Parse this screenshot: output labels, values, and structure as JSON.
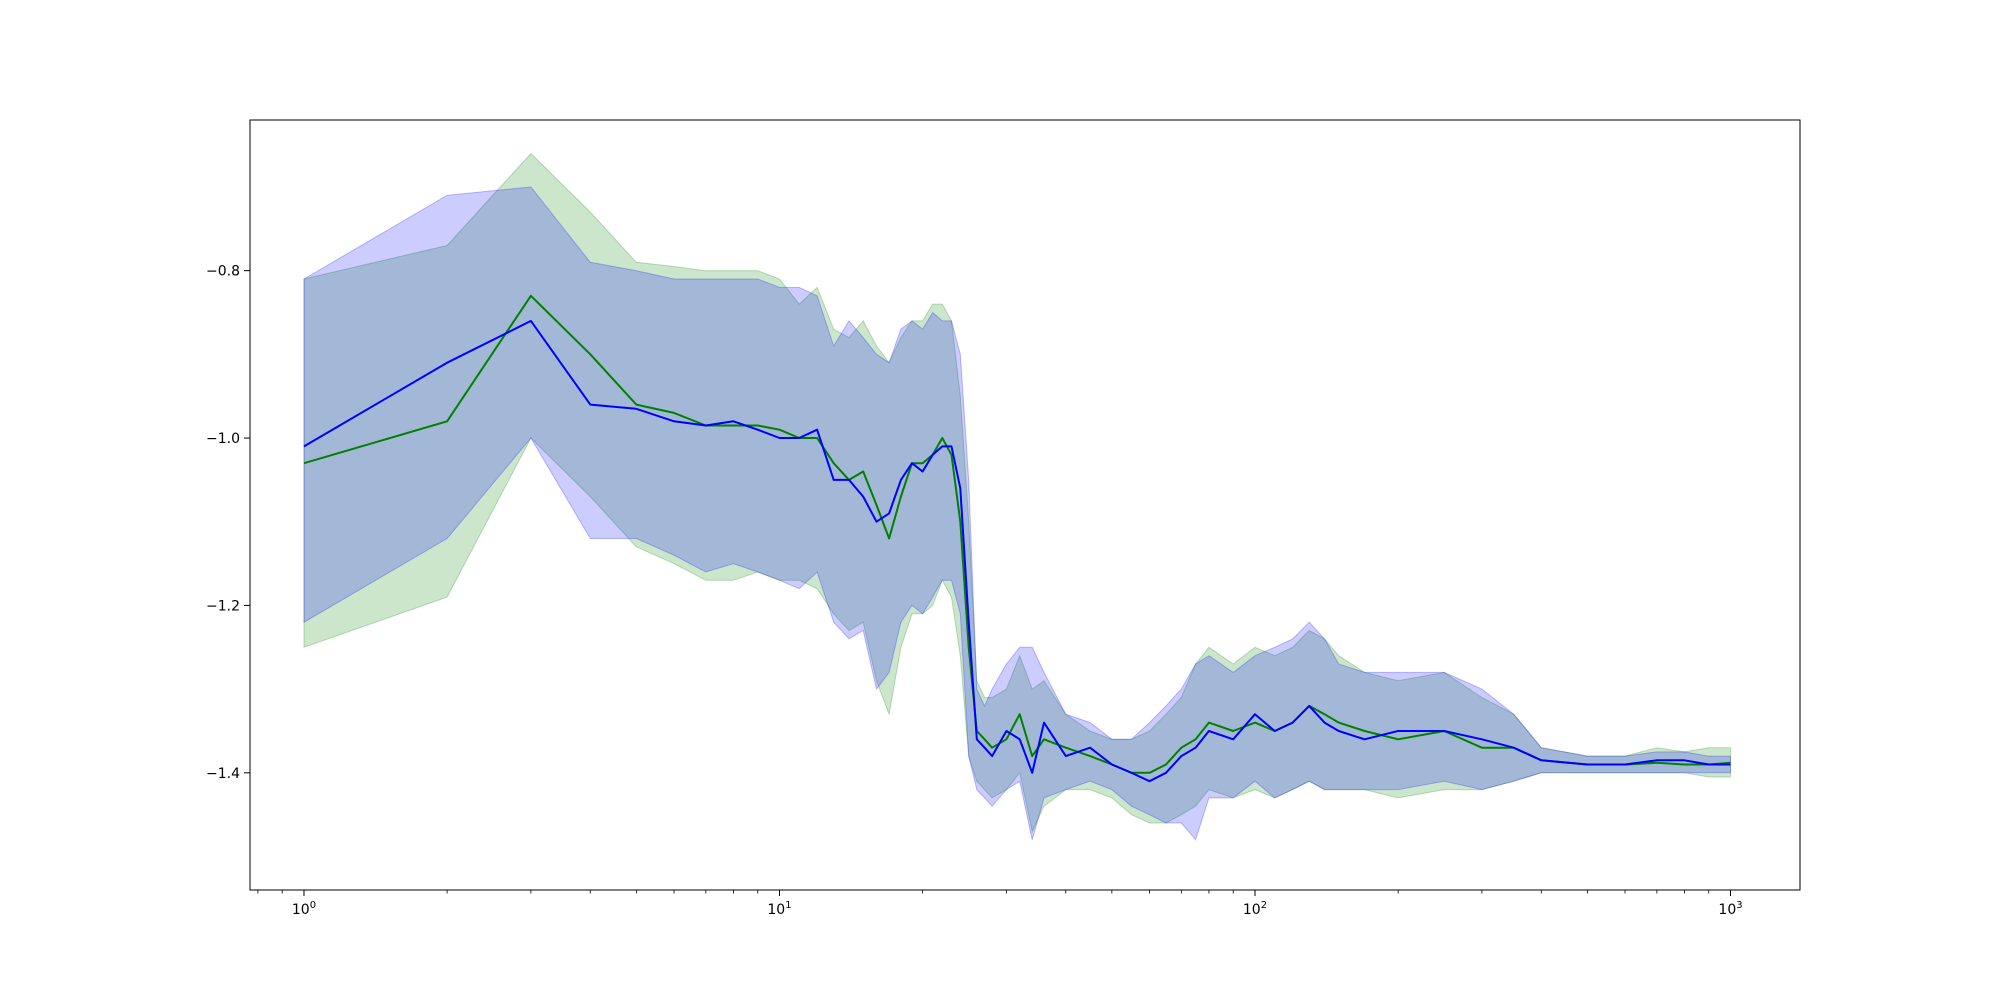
{
  "chart_data": {
    "type": "line",
    "title": "",
    "xlabel": "",
    "ylabel": "",
    "xscale": "log",
    "xlim": [
      0.77,
      1400
    ],
    "ylim": [
      -1.54,
      -0.62
    ],
    "grid": false,
    "legend": "none",
    "y_ticks": [
      -1.4,
      -1.2,
      -1.0,
      -0.8
    ],
    "y_tick_labels": [
      "−1.4",
      "−1.2",
      "−1.0",
      "−0.8"
    ],
    "x_ticks": [
      1,
      10,
      100,
      1000
    ],
    "x_tick_labels": [
      {
        "base": "10",
        "exp": "0"
      },
      {
        "base": "10",
        "exp": "1"
      },
      {
        "base": "10",
        "exp": "2"
      },
      {
        "base": "10",
        "exp": "3"
      }
    ],
    "series": [
      {
        "color": "#008000",
        "band_color": "#008000",
        "x": [
          1,
          2,
          3,
          4,
          5,
          6,
          7,
          8,
          9,
          10,
          11,
          12,
          13,
          14,
          15,
          16,
          17,
          18,
          19,
          20,
          21,
          22,
          23,
          24,
          25,
          26,
          27,
          28,
          30,
          32,
          34,
          36,
          40,
          45,
          50,
          55,
          60,
          65,
          70,
          75,
          80,
          90,
          100,
          110,
          120,
          130,
          140,
          150,
          170,
          200,
          250,
          300,
          350,
          400,
          500,
          600,
          700,
          800,
          900,
          1000
        ],
        "mean": [
          -1.03,
          -0.98,
          -0.83,
          -0.9,
          -0.96,
          -0.97,
          -0.985,
          -0.985,
          -0.985,
          -0.99,
          -1.0,
          -1.0,
          -1.03,
          -1.05,
          -1.04,
          -1.08,
          -1.12,
          -1.07,
          -1.03,
          -1.03,
          -1.02,
          -1.0,
          -1.02,
          -1.1,
          -1.25,
          -1.35,
          -1.36,
          -1.37,
          -1.36,
          -1.33,
          -1.38,
          -1.36,
          -1.37,
          -1.38,
          -1.39,
          -1.4,
          -1.4,
          -1.39,
          -1.37,
          -1.36,
          -1.34,
          -1.35,
          -1.34,
          -1.35,
          -1.34,
          -1.32,
          -1.33,
          -1.34,
          -1.35,
          -1.36,
          -1.35,
          -1.37,
          -1.37,
          -1.385,
          -1.39,
          -1.39,
          -1.388,
          -1.39,
          -1.39,
          -1.388
        ],
        "upper": [
          -0.81,
          -0.77,
          -0.66,
          -0.73,
          -0.79,
          -0.795,
          -0.8,
          -0.8,
          -0.8,
          -0.81,
          -0.84,
          -0.82,
          -0.87,
          -0.88,
          -0.86,
          -0.89,
          -0.91,
          -0.88,
          -0.86,
          -0.86,
          -0.84,
          -0.84,
          -0.86,
          -0.95,
          -1.1,
          -1.29,
          -1.31,
          -1.31,
          -1.3,
          -1.26,
          -1.3,
          -1.29,
          -1.33,
          -1.35,
          -1.36,
          -1.36,
          -1.35,
          -1.33,
          -1.31,
          -1.27,
          -1.25,
          -1.27,
          -1.25,
          -1.26,
          -1.25,
          -1.23,
          -1.24,
          -1.26,
          -1.28,
          -1.29,
          -1.28,
          -1.31,
          -1.33,
          -1.37,
          -1.38,
          -1.38,
          -1.37,
          -1.375,
          -1.37,
          -1.37
        ],
        "lower": [
          -1.25,
          -1.19,
          -1.0,
          -1.07,
          -1.13,
          -1.15,
          -1.17,
          -1.17,
          -1.16,
          -1.17,
          -1.17,
          -1.18,
          -1.21,
          -1.23,
          -1.22,
          -1.29,
          -1.33,
          -1.25,
          -1.21,
          -1.21,
          -1.2,
          -1.17,
          -1.19,
          -1.26,
          -1.38,
          -1.41,
          -1.42,
          -1.43,
          -1.42,
          -1.4,
          -1.47,
          -1.44,
          -1.42,
          -1.42,
          -1.43,
          -1.45,
          -1.46,
          -1.46,
          -1.45,
          -1.44,
          -1.42,
          -1.43,
          -1.42,
          -1.43,
          -1.42,
          -1.41,
          -1.42,
          -1.42,
          -1.42,
          -1.43,
          -1.42,
          -1.42,
          -1.41,
          -1.4,
          -1.4,
          -1.4,
          -1.4,
          -1.4,
          -1.405,
          -1.405
        ]
      },
      {
        "color": "#0000ff",
        "band_color": "#0000ff",
        "x": [
          1,
          2,
          3,
          4,
          5,
          6,
          7,
          8,
          9,
          10,
          11,
          12,
          13,
          14,
          15,
          16,
          17,
          18,
          19,
          20,
          21,
          22,
          23,
          24,
          25,
          26,
          27,
          28,
          30,
          32,
          34,
          36,
          40,
          45,
          50,
          55,
          60,
          65,
          70,
          75,
          80,
          90,
          100,
          110,
          120,
          130,
          140,
          150,
          170,
          200,
          250,
          300,
          350,
          400,
          500,
          600,
          700,
          800,
          900,
          1000
        ],
        "mean": [
          -1.01,
          -0.91,
          -0.86,
          -0.96,
          -0.965,
          -0.98,
          -0.985,
          -0.98,
          -0.99,
          -1.0,
          -1.0,
          -0.99,
          -1.05,
          -1.05,
          -1.07,
          -1.1,
          -1.09,
          -1.05,
          -1.03,
          -1.04,
          -1.02,
          -1.01,
          -1.01,
          -1.06,
          -1.22,
          -1.36,
          -1.37,
          -1.38,
          -1.35,
          -1.36,
          -1.4,
          -1.34,
          -1.38,
          -1.37,
          -1.39,
          -1.4,
          -1.41,
          -1.4,
          -1.38,
          -1.37,
          -1.35,
          -1.36,
          -1.33,
          -1.35,
          -1.34,
          -1.32,
          -1.34,
          -1.35,
          -1.36,
          -1.35,
          -1.35,
          -1.36,
          -1.37,
          -1.385,
          -1.39,
          -1.39,
          -1.385,
          -1.385,
          -1.39,
          -1.39
        ],
        "upper": [
          -0.81,
          -0.71,
          -0.7,
          -0.79,
          -0.8,
          -0.81,
          -0.81,
          -0.81,
          -0.81,
          -0.82,
          -0.82,
          -0.83,
          -0.89,
          -0.86,
          -0.88,
          -0.9,
          -0.91,
          -0.87,
          -0.86,
          -0.87,
          -0.85,
          -0.86,
          -0.86,
          -0.9,
          -1.05,
          -1.3,
          -1.32,
          -1.3,
          -1.27,
          -1.25,
          -1.25,
          -1.28,
          -1.33,
          -1.34,
          -1.36,
          -1.36,
          -1.34,
          -1.32,
          -1.3,
          -1.27,
          -1.26,
          -1.28,
          -1.26,
          -1.25,
          -1.24,
          -1.22,
          -1.24,
          -1.27,
          -1.28,
          -1.28,
          -1.28,
          -1.3,
          -1.33,
          -1.37,
          -1.38,
          -1.38,
          -1.375,
          -1.375,
          -1.38,
          -1.38
        ],
        "lower": [
          -1.22,
          -1.12,
          -1.0,
          -1.12,
          -1.12,
          -1.14,
          -1.16,
          -1.15,
          -1.16,
          -1.17,
          -1.18,
          -1.16,
          -1.22,
          -1.24,
          -1.23,
          -1.3,
          -1.28,
          -1.22,
          -1.2,
          -1.21,
          -1.19,
          -1.17,
          -1.17,
          -1.21,
          -1.38,
          -1.42,
          -1.43,
          -1.44,
          -1.42,
          -1.41,
          -1.48,
          -1.43,
          -1.42,
          -1.41,
          -1.42,
          -1.44,
          -1.45,
          -1.46,
          -1.46,
          -1.48,
          -1.43,
          -1.43,
          -1.41,
          -1.43,
          -1.42,
          -1.41,
          -1.42,
          -1.42,
          -1.42,
          -1.42,
          -1.41,
          -1.42,
          -1.41,
          -1.4,
          -1.4,
          -1.4,
          -1.4,
          -1.4,
          -1.4,
          -1.4
        ]
      }
    ]
  }
}
